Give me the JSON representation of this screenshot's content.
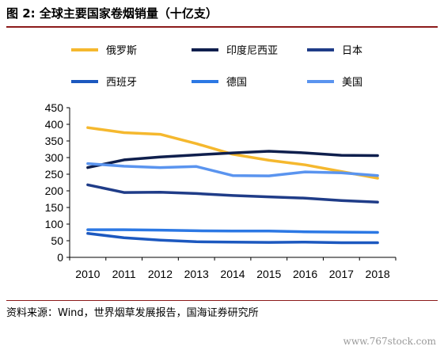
{
  "figure": {
    "title": "图 2:  全球主要国家卷烟销量（十亿支）",
    "source": "资料来源：Wind，世界烟草发展报告，国海证券研究所",
    "watermark": "www.767stock.com"
  },
  "chart_data": {
    "type": "line",
    "title": "",
    "xlabel": "",
    "ylabel": "",
    "x": [
      "2010",
      "2011",
      "2012",
      "2013",
      "2014",
      "2015",
      "2016",
      "2017",
      "2018"
    ],
    "ylim": [
      0,
      450
    ],
    "yticks": [
      0,
      50,
      100,
      150,
      200,
      250,
      300,
      350,
      400,
      450
    ],
    "grid": false,
    "legend_position": "top",
    "series": [
      {
        "name": "俄罗斯",
        "color": "#f5b82e",
        "values": [
          390,
          375,
          370,
          342,
          310,
          292,
          278,
          258,
          238
        ]
      },
      {
        "name": "印度尼西亚",
        "color": "#0f1f4d",
        "values": [
          270,
          293,
          302,
          308,
          314,
          319,
          314,
          307,
          306
        ]
      },
      {
        "name": "日本",
        "color": "#1f3c88",
        "values": [
          218,
          195,
          196,
          192,
          186,
          182,
          178,
          171,
          166
        ]
      },
      {
        "name": "西班牙",
        "color": "#1c58bf",
        "values": [
          72,
          59,
          52,
          47,
          46,
          45,
          46,
          44,
          44
        ]
      },
      {
        "name": "德国",
        "color": "#2c78e4",
        "values": [
          83,
          83,
          82,
          80,
          79,
          79,
          77,
          76,
          75
        ]
      },
      {
        "name": "美国",
        "color": "#5a94ef",
        "values": [
          282,
          274,
          270,
          273,
          246,
          245,
          257,
          254,
          246
        ]
      }
    ]
  }
}
